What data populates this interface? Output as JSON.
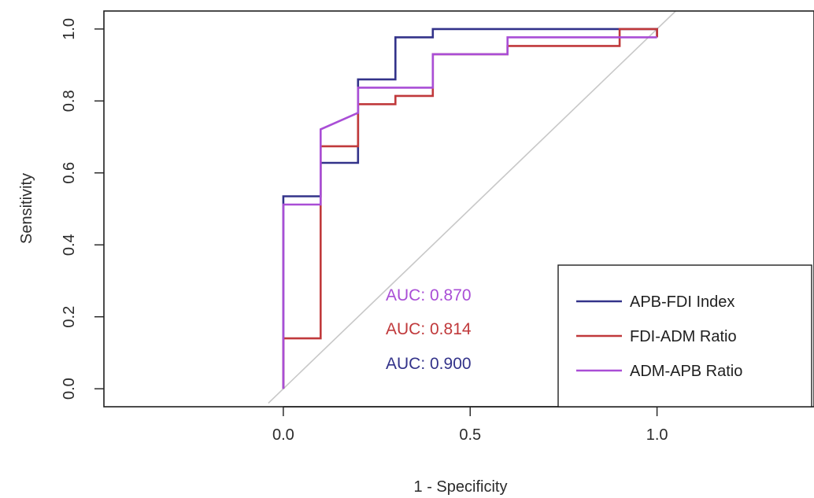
{
  "chart_data": {
    "type": "line",
    "xlabel": "1 - Specificity",
    "ylabel": "Sensitivity",
    "xlim": [
      -0.48,
      1.42
    ],
    "ylim": [
      -0.05,
      1.05
    ],
    "xticks": [
      "0.0",
      "0.5",
      "1.0"
    ],
    "xtick_values": [
      0.0,
      0.5,
      1.0
    ],
    "yticks": [
      "0.0",
      "0.2",
      "0.4",
      "0.6",
      "0.8",
      "1.0"
    ],
    "ytick_values": [
      0.0,
      0.2,
      0.4,
      0.6,
      0.8,
      1.0
    ],
    "diagonal": {
      "color": "#c8c8c8",
      "from": [
        -0.04,
        -0.04
      ],
      "to": [
        1.0,
        1.0
      ]
    },
    "series": [
      {
        "name": "APB-FDI Index",
        "color": "#33338a",
        "x": [
          0.0,
          0.0,
          0.1,
          0.1,
          0.2,
          0.2,
          0.3,
          0.3,
          0.4,
          0.4,
          1.0,
          1.0
        ],
        "y": [
          0.0,
          0.535,
          0.535,
          0.628,
          0.628,
          0.86,
          0.86,
          0.977,
          0.977,
          1.0,
          1.0,
          0.977
        ]
      },
      {
        "name": "FDI-ADM Ratio",
        "color": "#c0393b",
        "x": [
          0.0,
          0.0,
          0.1,
          0.1,
          0.2,
          0.2,
          0.3,
          0.3,
          0.4,
          0.4,
          0.6,
          0.6,
          0.9,
          0.9,
          1.0,
          1.0
        ],
        "y": [
          0.0,
          0.14,
          0.14,
          0.674,
          0.674,
          0.791,
          0.791,
          0.814,
          0.814,
          0.93,
          0.93,
          0.953,
          0.953,
          1.0,
          1.0,
          0.977
        ]
      },
      {
        "name": "ADM-APB Ratio",
        "color": "#a94ed6",
        "x": [
          0.0,
          0.0,
          0.1,
          0.1,
          0.2,
          0.2,
          0.4,
          0.4,
          0.6,
          0.6,
          1.0
        ],
        "y": [
          0.0,
          0.512,
          0.512,
          0.721,
          0.767,
          0.837,
          0.837,
          0.93,
          0.93,
          0.977,
          0.977
        ]
      }
    ],
    "annotations": [
      {
        "text": "AUC: 0.870",
        "color": "#a94ed6"
      },
      {
        "text": "AUC: 0.814",
        "color": "#c0393b"
      },
      {
        "text": "AUC: 0.900",
        "color": "#33338a"
      }
    ],
    "legend": {
      "position": "bottom-right",
      "entries": [
        "APB-FDI Index",
        "FDI-ADM Ratio",
        "ADM-APB Ratio"
      ]
    },
    "grid": false
  }
}
